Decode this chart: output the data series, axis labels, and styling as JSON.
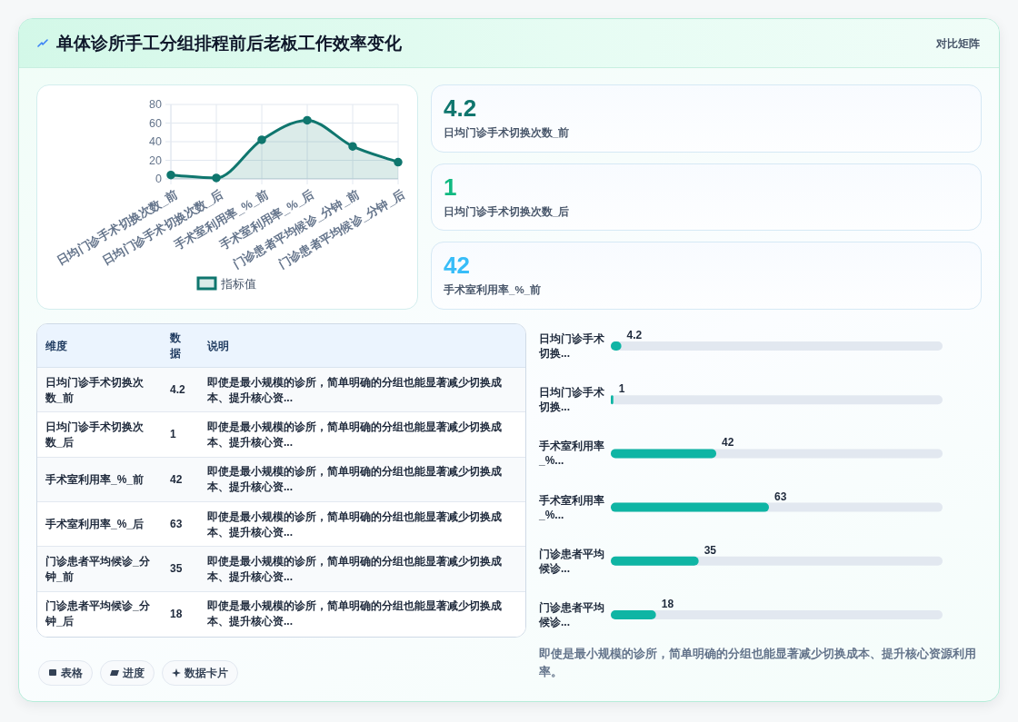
{
  "chart_data": [
    {
      "type": "other",
      "title": "单体诊所手工分组排程前后老板工作效率变化",
      "annotations": [
        "对比矩阵"
      ]
    },
    {
      "type": "area",
      "categories": [
        "日均门诊手术切换次数_前",
        "日均门诊手术切换次数_后",
        "手术室利用率_%_前",
        "手术室利用率_%_后",
        "门诊患者平均候诊_分钟_前",
        "门诊患者平均候诊_分钟_后"
      ],
      "series": [
        {
          "name": "指标值",
          "color": "#0f766e",
          "values": [
            4.2,
            1,
            42,
            63,
            35,
            18
          ]
        }
      ],
      "ylim": [
        0,
        80
      ],
      "yticks": [
        0,
        20,
        40,
        60,
        80
      ],
      "grid": true,
      "legend": "bottom",
      "marker": "circle"
    },
    {
      "type": "other",
      "categories": [
        "日均门诊手术切换次数_前",
        "日均门诊手术切换次数_后",
        "手术室利用率_%_前"
      ],
      "values": [
        4.2,
        1,
        42
      ],
      "data_labels": true
    },
    {
      "type": "other",
      "categories": [
        "日均门诊手术切换次数_前",
        "日均门诊手术切换次数_后",
        "手术室利用率_%_前",
        "手术室利用率_%_后",
        "门诊患者平均候诊_分钟_前",
        "门诊患者平均候诊_分钟_后"
      ],
      "values": [
        4.2,
        1,
        42,
        63,
        35,
        18
      ],
      "data_labels": true,
      "annotations": [
        "维度",
        "数据",
        "说明",
        "即使是最小规模的诊所，简单明确的分组也能显著减少切换成本、提升核心资...",
        "即使是最小规模的诊所，简单明确的分组也能显著减少切换成本、提升核心资...",
        "即使是最小规模的诊所，简单明确的分组也能显著减少切换成本、提升核心资...",
        "即使是最小规模的诊所，简单明确的分组也能显著减少切换成本、提升核心资...",
        "即使是最小规模的诊所，简单明确的分组也能显著减少切换成本、提升核心资...",
        "即使是最小规模的诊所，简单明确的分组也能显著减少切换成本、提升核心资..."
      ]
    },
    {
      "type": "bar",
      "orientation": "horizontal",
      "categories": [
        "日均门诊手术切换...",
        "日均门诊手术切换...",
        "手术室利用率_%...",
        "手术室利用率_%...",
        "门诊患者平均候诊...",
        "门诊患者平均候诊..."
      ],
      "values": [
        4.2,
        1,
        42,
        63,
        35,
        18
      ],
      "color": "#0fb5a4",
      "tick_labels": "y",
      "data_labels": true,
      "annotations": [
        "即使是最小规模的诊所，简单明确的分组也能显著减少切换成本、提升核心资源利用率。"
      ]
    },
    {
      "type": "other",
      "annotations": [
        "表格",
        "进度",
        "数据卡片"
      ]
    }
  ]
}
